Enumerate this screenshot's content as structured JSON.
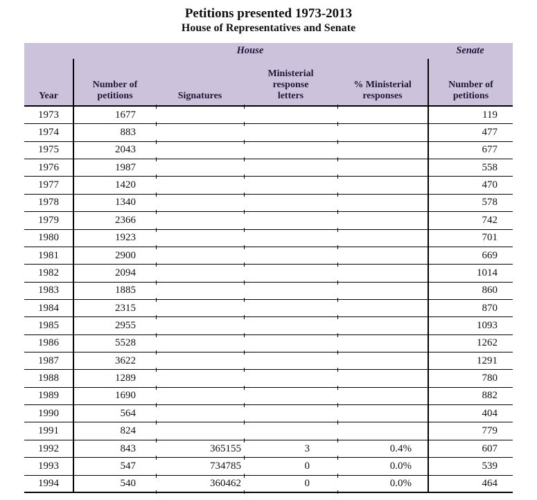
{
  "title": "Petitions presented 1973-2013",
  "subtitle": "House of Representatives and Senate",
  "colors": {
    "header_background": "#cdc2dc",
    "header_text": "#1e1838",
    "body_text": "#101010",
    "line": "#000000"
  },
  "table": {
    "group_headers": {
      "house": "House",
      "senate": "Senate"
    },
    "columns": [
      "Year",
      "Number of\npetitions",
      "Signatures",
      "Ministerial\nresponse\nletters",
      "% Ministerial\nresponses",
      "Number of\npetitions"
    ],
    "rows": [
      {
        "year": "1973",
        "petitions": "1677",
        "signatures": "",
        "letters": "",
        "pct": "",
        "senate": "119"
      },
      {
        "year": "1974",
        "petitions": "883",
        "signatures": "",
        "letters": "",
        "pct": "",
        "senate": "477"
      },
      {
        "year": "1975",
        "petitions": "2043",
        "signatures": "",
        "letters": "",
        "pct": "",
        "senate": "677"
      },
      {
        "year": "1976",
        "petitions": "1987",
        "signatures": "",
        "letters": "",
        "pct": "",
        "senate": "558"
      },
      {
        "year": "1977",
        "petitions": "1420",
        "signatures": "",
        "letters": "",
        "pct": "",
        "senate": "470"
      },
      {
        "year": "1978",
        "petitions": "1340",
        "signatures": "",
        "letters": "",
        "pct": "",
        "senate": "578"
      },
      {
        "year": "1979",
        "petitions": "2366",
        "signatures": "",
        "letters": "",
        "pct": "",
        "senate": "742"
      },
      {
        "year": "1980",
        "petitions": "1923",
        "signatures": "",
        "letters": "",
        "pct": "",
        "senate": "701"
      },
      {
        "year": "1981",
        "petitions": "2900",
        "signatures": "",
        "letters": "",
        "pct": "",
        "senate": "669"
      },
      {
        "year": "1982",
        "petitions": "2094",
        "signatures": "",
        "letters": "",
        "pct": "",
        "senate": "1014"
      },
      {
        "year": "1983",
        "petitions": "1885",
        "signatures": "",
        "letters": "",
        "pct": "",
        "senate": "860"
      },
      {
        "year": "1984",
        "petitions": "2315",
        "signatures": "",
        "letters": "",
        "pct": "",
        "senate": "870"
      },
      {
        "year": "1985",
        "petitions": "2955",
        "signatures": "",
        "letters": "",
        "pct": "",
        "senate": "1093"
      },
      {
        "year": "1986",
        "petitions": "5528",
        "signatures": "",
        "letters": "",
        "pct": "",
        "senate": "1262"
      },
      {
        "year": "1987",
        "petitions": "3622",
        "signatures": "",
        "letters": "",
        "pct": "",
        "senate": "1291"
      },
      {
        "year": "1988",
        "petitions": "1289",
        "signatures": "",
        "letters": "",
        "pct": "",
        "senate": "780"
      },
      {
        "year": "1989",
        "petitions": "1690",
        "signatures": "",
        "letters": "",
        "pct": "",
        "senate": "882"
      },
      {
        "year": "1990",
        "petitions": "564",
        "signatures": "",
        "letters": "",
        "pct": "",
        "senate": "404"
      },
      {
        "year": "1991",
        "petitions": "824",
        "signatures": "",
        "letters": "",
        "pct": "",
        "senate": "779"
      },
      {
        "year": "1992",
        "petitions": "843",
        "signatures": "365155",
        "letters": "3",
        "pct": "0.4%",
        "senate": "607"
      },
      {
        "year": "1993",
        "petitions": "547",
        "signatures": "734785",
        "letters": "0",
        "pct": "0.0%",
        "senate": "539"
      },
      {
        "year": "1994",
        "petitions": "540",
        "signatures": "360462",
        "letters": "0",
        "pct": "0.0%",
        "senate": "464"
      }
    ]
  },
  "chart_data": {
    "type": "table",
    "title": "Petitions presented 1973-2013",
    "subtitle": "House of Representatives and Senate",
    "column_groups": [
      "House",
      "Senate"
    ],
    "columns": [
      "Year",
      "House Number of petitions",
      "House Signatures",
      "House Ministerial response letters",
      "House % Ministerial responses",
      "Senate Number of petitions"
    ],
    "rows": [
      [
        1973,
        1677,
        null,
        null,
        null,
        119
      ],
      [
        1974,
        883,
        null,
        null,
        null,
        477
      ],
      [
        1975,
        2043,
        null,
        null,
        null,
        677
      ],
      [
        1976,
        1987,
        null,
        null,
        null,
        558
      ],
      [
        1977,
        1420,
        null,
        null,
        null,
        470
      ],
      [
        1978,
        1340,
        null,
        null,
        null,
        578
      ],
      [
        1979,
        2366,
        null,
        null,
        null,
        742
      ],
      [
        1980,
        1923,
        null,
        null,
        null,
        701
      ],
      [
        1981,
        2900,
        null,
        null,
        null,
        669
      ],
      [
        1982,
        2094,
        null,
        null,
        null,
        1014
      ],
      [
        1983,
        1885,
        null,
        null,
        null,
        860
      ],
      [
        1984,
        2315,
        null,
        null,
        null,
        870
      ],
      [
        1985,
        2955,
        null,
        null,
        null,
        1093
      ],
      [
        1986,
        5528,
        null,
        null,
        null,
        1262
      ],
      [
        1987,
        3622,
        null,
        null,
        null,
        1291
      ],
      [
        1988,
        1289,
        null,
        null,
        null,
        780
      ],
      [
        1989,
        1690,
        null,
        null,
        null,
        882
      ],
      [
        1990,
        564,
        null,
        null,
        null,
        404
      ],
      [
        1991,
        824,
        null,
        null,
        null,
        779
      ],
      [
        1992,
        843,
        365155,
        3,
        "0.4%",
        607
      ],
      [
        1993,
        547,
        734785,
        0,
        "0.0%",
        539
      ],
      [
        1994,
        540,
        360462,
        0,
        "0.0%",
        464
      ]
    ]
  }
}
